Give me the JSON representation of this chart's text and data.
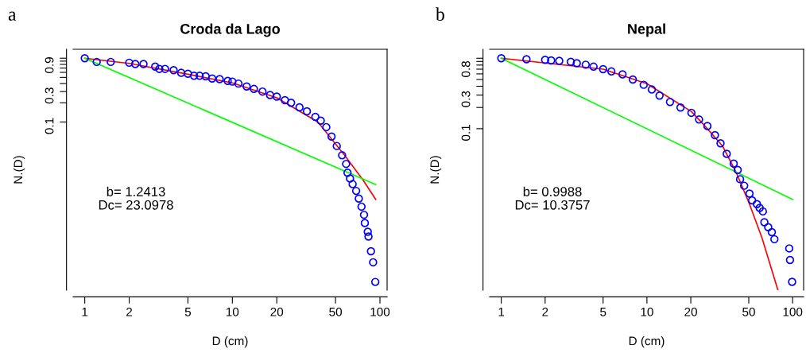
{
  "chart_data": [
    {
      "type": "scatter",
      "title": "Croda da Lago",
      "xlabel": "D (cm)",
      "ylabel": "N.(D)",
      "log": "xy",
      "grid": false,
      "legend": false,
      "annotations": [
        "a",
        "b= 1.2413\nDc= 23.0978"
      ],
      "xlim": [
        0.834,
        111.8
      ],
      "ylim": [
        0.00023,
        1.38
      ],
      "xticks": [
        1,
        2,
        5,
        10,
        20,
        50,
        100
      ],
      "yticks": [
        0.1,
        {
          "value": 0.2,
          "label": null
        },
        0.3,
        {
          "value": 0.4,
          "label": null
        },
        {
          "value": 0.5,
          "label": null
        },
        {
          "value": 0.6,
          "label": null
        },
        {
          "value": 0.7,
          "label": null
        },
        {
          "value": 0.8,
          "label": null
        },
        0.9,
        {
          "value": 1.0,
          "label": null
        }
      ],
      "series": [
        {
          "marker": "circle",
          "color": "#0000ff",
          "x": [
            1,
            1.205,
            1.5,
            2.0,
            2.2,
            2.5,
            3.0,
            3.2,
            3.5,
            4.0,
            4.5,
            5,
            5.5,
            6,
            6.6,
            7.3,
            8.2,
            9.3,
            10,
            11,
            12.5,
            14,
            16,
            18,
            20,
            22.7,
            25,
            28.5,
            32,
            36.5,
            39.7,
            43.3,
            47,
            51,
            55.4,
            59,
            60.3,
            62.7,
            65.3,
            69,
            71.9,
            75,
            78,
            79,
            82.7,
            83.6,
            86.9,
            89.9,
            93
          ],
          "values": [
            1.0,
            0.875,
            0.875,
            0.85,
            0.81,
            0.81,
            0.74,
            0.68,
            0.68,
            0.65,
            0.59,
            0.57,
            0.53,
            0.53,
            0.52,
            0.48,
            0.47,
            0.44,
            0.43,
            0.4,
            0.36,
            0.33,
            0.3,
            0.265,
            0.25,
            0.22,
            0.2,
            0.17,
            0.147,
            0.12,
            0.105,
            0.083,
            0.059,
            0.042,
            0.03,
            0.022,
            0.016,
            0.013,
            0.0106,
            0.0083,
            0.0063,
            0.0047,
            0.0035,
            0.0026,
            0.0019,
            0.0016,
            0.00094,
            0.00063,
            0.00031
          ]
        },
        {
          "type": "line",
          "marker": "none",
          "color": "#ff0000",
          "x": [
            1,
            2,
            5,
            10,
            20,
            38,
            57.6,
            77,
            93.6
          ],
          "values": [
            1.0,
            0.83,
            0.56,
            0.41,
            0.24,
            0.1,
            0.03,
            0.0122,
            0.0061
          ]
        },
        {
          "type": "line",
          "marker": "none",
          "color": "#00ff00",
          "x": [
            1,
            93.6
          ],
          "values": [
            1.0,
            0.0104
          ]
        }
      ]
    },
    {
      "type": "scatter",
      "title": "Nepal",
      "xlabel": "D (cm)",
      "ylabel": "N.(D)",
      "log": "xy",
      "grid": false,
      "legend": false,
      "annotations": [
        "b",
        "b= 0.9988\nDc= 10.3757"
      ],
      "xlim": [
        0.832,
        119
      ],
      "ylim": [
        0.00051,
        1.34
      ],
      "xticks": [
        1,
        2,
        5,
        10,
        20,
        50,
        100
      ],
      "yticks": [
        0.1,
        {
          "value": 0.2,
          "label": null
        },
        0.3,
        {
          "value": 0.4,
          "label": null
        },
        {
          "value": 0.5,
          "label": null
        },
        {
          "value": 0.6,
          "label": null
        },
        {
          "value": 0.7,
          "label": null
        },
        0.8,
        {
          "value": 0.9,
          "label": null
        },
        {
          "value": 1.0,
          "label": null
        }
      ],
      "series": [
        {
          "marker": "circle",
          "color": "#0000ff",
          "x": [
            1,
            1.49,
            2.0,
            2.2,
            2.5,
            3.0,
            3.3,
            3.8,
            4.3,
            5.0,
            5.7,
            6.8,
            8.0,
            9.5,
            10.8,
            12.2,
            14.4,
            17,
            20.2,
            22.8,
            26,
            29.3,
            32,
            35.3,
            39.4,
            42,
            43.6,
            46.5,
            50.6,
            52.7,
            56.9,
            59.4,
            62.5,
            64,
            68,
            72,
            75,
            94.8,
            96,
            99.2
          ],
          "values": [
            1.0,
            0.97,
            0.95,
            0.93,
            0.92,
            0.89,
            0.85,
            0.81,
            0.76,
            0.7,
            0.65,
            0.59,
            0.5,
            0.42,
            0.36,
            0.295,
            0.24,
            0.2,
            0.168,
            0.135,
            0.109,
            0.081,
            0.062,
            0.044,
            0.032,
            0.026,
            0.0192,
            0.0155,
            0.012,
            0.0096,
            0.0085,
            0.0075,
            0.0067,
            0.0047,
            0.004,
            0.0034,
            0.0027,
            0.002,
            0.00137,
            0.00067
          ]
        },
        {
          "type": "line",
          "marker": "none",
          "color": "#ff0000",
          "x": [
            1,
            5,
            10,
            20.2,
            24,
            33,
            41,
            50.6,
            61.7,
            79.3
          ],
          "values": [
            1.0,
            0.7,
            0.436,
            0.175,
            0.12,
            0.057,
            0.024,
            0.0085,
            0.0028,
            0.00051
          ]
        },
        {
          "type": "line",
          "marker": "none",
          "color": "#00ff00",
          "x": [
            1,
            100
          ],
          "values": [
            1.0,
            0.0099
          ]
        }
      ]
    }
  ]
}
